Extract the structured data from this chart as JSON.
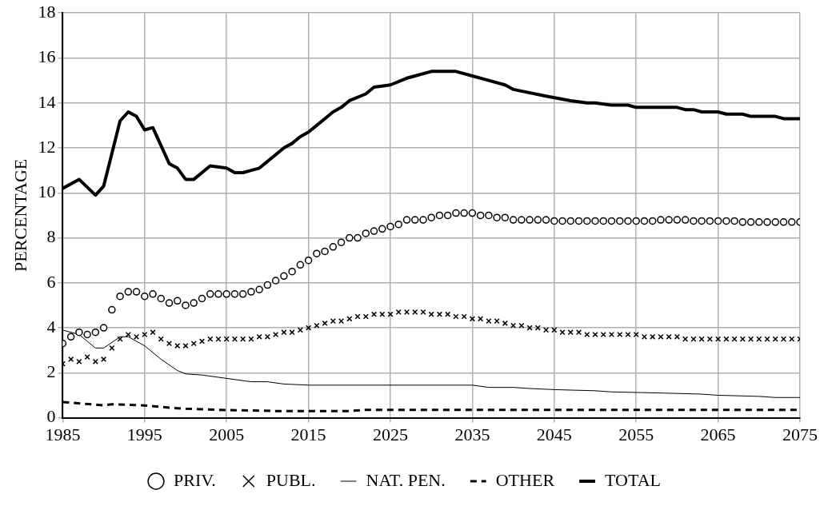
{
  "chart_data": {
    "type": "line",
    "ylabel": "PERCENTAGE",
    "xlim": [
      1985,
      2075
    ],
    "xticks": [
      1985,
      1995,
      2005,
      2015,
      2025,
      2035,
      2045,
      2055,
      2065,
      2075
    ],
    "ylim": [
      0,
      18
    ],
    "yticks": [
      0,
      2,
      4,
      6,
      8,
      10,
      12,
      14,
      16,
      18
    ],
    "grid": true,
    "legend": "bottom",
    "x": [
      1985,
      1986,
      1987,
      1988,
      1989,
      1990,
      1991,
      1992,
      1993,
      1994,
      1995,
      1996,
      1997,
      1998,
      1999,
      2000,
      2001,
      2002,
      2003,
      2004,
      2005,
      2006,
      2007,
      2008,
      2009,
      2010,
      2011,
      2012,
      2013,
      2014,
      2015,
      2016,
      2017,
      2018,
      2019,
      2020,
      2021,
      2022,
      2023,
      2024,
      2025,
      2026,
      2027,
      2028,
      2029,
      2030,
      2031,
      2032,
      2033,
      2034,
      2035,
      2036,
      2037,
      2038,
      2039,
      2040,
      2041,
      2042,
      2043,
      2044,
      2045,
      2046,
      2047,
      2048,
      2049,
      2050,
      2051,
      2052,
      2053,
      2054,
      2055,
      2056,
      2057,
      2058,
      2059,
      2060,
      2061,
      2062,
      2063,
      2064,
      2065,
      2066,
      2067,
      2068,
      2069,
      2070,
      2071,
      2072,
      2073,
      2074,
      2075
    ],
    "series": [
      {
        "name": "PRIV.",
        "type": "scatter",
        "marker": "circle",
        "color": "#000000",
        "values": [
          3.3,
          3.6,
          3.8,
          3.7,
          3.8,
          4.0,
          4.8,
          5.4,
          5.6,
          5.6,
          5.4,
          5.5,
          5.3,
          5.1,
          5.2,
          5.0,
          5.1,
          5.3,
          5.5,
          5.5,
          5.5,
          5.5,
          5.5,
          5.6,
          5.7,
          5.9,
          6.1,
          6.3,
          6.5,
          6.8,
          7.0,
          7.3,
          7.4,
          7.6,
          7.8,
          8.0,
          8.0,
          8.2,
          8.3,
          8.4,
          8.5,
          8.6,
          8.8,
          8.8,
          8.8,
          8.9,
          9.0,
          9.0,
          9.1,
          9.1,
          9.1,
          9.0,
          9.0,
          8.9,
          8.9,
          8.8,
          8.8,
          8.8,
          8.8,
          8.8,
          8.75,
          8.75,
          8.75,
          8.75,
          8.75,
          8.75,
          8.75,
          8.75,
          8.75,
          8.75,
          8.75,
          8.75,
          8.75,
          8.8,
          8.8,
          8.8,
          8.8,
          8.75,
          8.75,
          8.75,
          8.75,
          8.75,
          8.75,
          8.7,
          8.7,
          8.7,
          8.7,
          8.7,
          8.7,
          8.7,
          8.7
        ]
      },
      {
        "name": "PUBL.",
        "type": "scatter",
        "marker": "cross",
        "color": "#000000",
        "values": [
          2.4,
          2.6,
          2.5,
          2.7,
          2.5,
          2.6,
          3.1,
          3.5,
          3.7,
          3.6,
          3.7,
          3.8,
          3.5,
          3.3,
          3.2,
          3.2,
          3.3,
          3.4,
          3.5,
          3.5,
          3.5,
          3.5,
          3.5,
          3.5,
          3.6,
          3.6,
          3.7,
          3.8,
          3.8,
          3.9,
          4.0,
          4.1,
          4.2,
          4.3,
          4.3,
          4.4,
          4.5,
          4.5,
          4.6,
          4.6,
          4.6,
          4.7,
          4.7,
          4.7,
          4.7,
          4.6,
          4.6,
          4.6,
          4.5,
          4.5,
          4.4,
          4.4,
          4.3,
          4.3,
          4.2,
          4.1,
          4.1,
          4.0,
          4.0,
          3.9,
          3.9,
          3.8,
          3.8,
          3.8,
          3.7,
          3.7,
          3.7,
          3.7,
          3.7,
          3.7,
          3.7,
          3.6,
          3.6,
          3.6,
          3.6,
          3.6,
          3.5,
          3.5,
          3.5,
          3.5,
          3.5,
          3.5,
          3.5,
          3.5,
          3.5,
          3.5,
          3.5,
          3.5,
          3.5,
          3.5,
          3.5
        ]
      },
      {
        "name": "NAT. PEN.",
        "type": "line",
        "marker": "none",
        "line_style": "solid",
        "color": "#000000",
        "x": [
          1985,
          1987,
          1989,
          1990,
          1992,
          1993,
          1995,
          1997,
          1999,
          2000,
          2002,
          2005,
          2008,
          2010,
          2012,
          2015,
          2035,
          2037,
          2040,
          2042,
          2045,
          2050,
          2052,
          2058,
          2063,
          2065,
          2070,
          2072,
          2075
        ],
        "values": [
          3.9,
          3.7,
          3.1,
          3.1,
          3.6,
          3.6,
          3.2,
          2.6,
          2.1,
          1.95,
          1.9,
          1.75,
          1.6,
          1.6,
          1.5,
          1.45,
          1.45,
          1.35,
          1.35,
          1.3,
          1.25,
          1.2,
          1.15,
          1.1,
          1.05,
          1.0,
          0.95,
          0.9,
          0.9
        ]
      },
      {
        "name": "OTHER",
        "type": "line",
        "marker": "none",
        "line_style": "dashed",
        "color": "#000000",
        "x": [
          1985,
          1990,
          1991,
          1995,
          1998,
          2000,
          2004,
          2011,
          2020,
          2022,
          2075
        ],
        "values": [
          0.7,
          0.55,
          0.6,
          0.55,
          0.45,
          0.4,
          0.35,
          0.3,
          0.3,
          0.35,
          0.35
        ]
      },
      {
        "name": "TOTAL",
        "type": "line",
        "marker": "none",
        "line_style": "solid",
        "color": "#000000",
        "x": [
          1985,
          1987,
          1989,
          1990,
          1992,
          1993,
          1994,
          1995,
          1996,
          1998,
          1999,
          2000,
          2001,
          2003,
          2005,
          2006,
          2007,
          2008,
          2009,
          2010,
          2011,
          2012,
          2013,
          2014,
          2015,
          2016,
          2017,
          2018,
          2019,
          2020,
          2022,
          2023,
          2025,
          2027,
          2028,
          2030,
          2033,
          2035,
          2037,
          2039,
          2040,
          2044,
          2047,
          2049,
          2050,
          2052,
          2054,
          2055,
          2060,
          2061,
          2062,
          2063,
          2065,
          2066,
          2068,
          2069,
          2072,
          2073,
          2075
        ],
        "values": [
          10.2,
          10.6,
          9.9,
          10.3,
          13.2,
          13.6,
          13.4,
          12.8,
          12.9,
          11.3,
          11.1,
          10.6,
          10.6,
          11.2,
          11.1,
          10.9,
          10.9,
          11.0,
          11.1,
          11.4,
          11.7,
          12.0,
          12.2,
          12.5,
          12.7,
          13.0,
          13.3,
          13.6,
          13.8,
          14.1,
          14.4,
          14.7,
          14.8,
          15.1,
          15.2,
          15.4,
          15.4,
          15.2,
          15.0,
          14.8,
          14.6,
          14.3,
          14.1,
          14.0,
          14.0,
          13.9,
          13.9,
          13.8,
          13.8,
          13.7,
          13.7,
          13.6,
          13.6,
          13.5,
          13.5,
          13.4,
          13.4,
          13.3,
          13.3
        ]
      }
    ]
  }
}
